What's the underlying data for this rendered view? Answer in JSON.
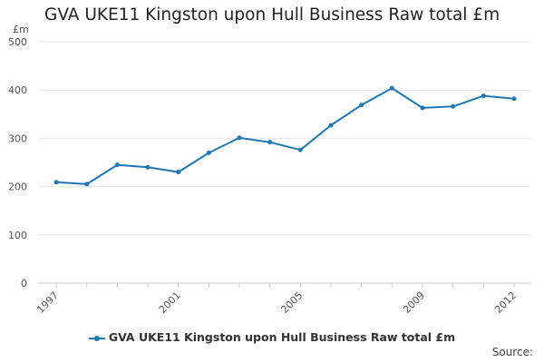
{
  "title": "GVA UKE11 Kingston upon Hull Business Raw total £m",
  "source_label": "Source:",
  "colors": {
    "series": "#1f77b4",
    "grid": "#e6e6e6",
    "axis": "#cccccc"
  },
  "chart_data": {
    "type": "line",
    "title": "GVA UKE11 Kingston upon Hull Business Raw total £m",
    "ylabel": "£m",
    "xlabel": "",
    "x": [
      1997,
      1998,
      1999,
      2000,
      2001,
      2002,
      2003,
      2004,
      2005,
      2006,
      2007,
      2008,
      2009,
      2010,
      2011,
      2012
    ],
    "x_tick_labels": [
      "1997",
      "2001",
      "2005",
      "2009",
      "2012"
    ],
    "y_ticks": [
      0,
      100,
      200,
      300,
      400,
      500
    ],
    "ylim": [
      0,
      500
    ],
    "grid": true,
    "legend_position": "bottom",
    "series": [
      {
        "name": "GVA UKE11 Kingston upon Hull Business Raw total £m",
        "values": [
          209,
          205,
          245,
          240,
          230,
          270,
          301,
          292,
          276,
          327,
          369,
          404,
          363,
          366,
          388,
          382
        ]
      }
    ]
  }
}
